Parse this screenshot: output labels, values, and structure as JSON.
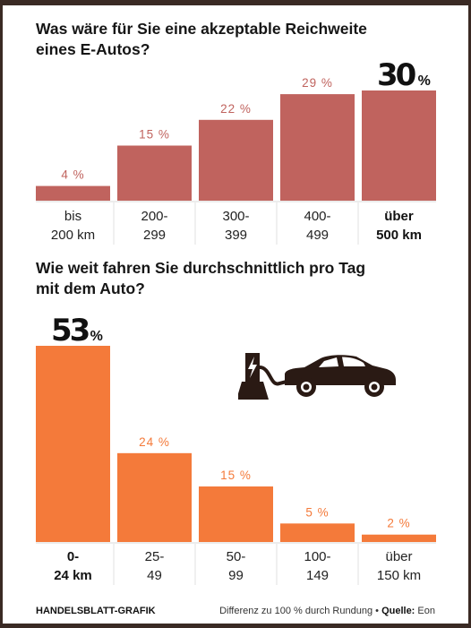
{
  "chart1": {
    "title_line1": "Was wäre für Sie eine akzeptable Reichweite",
    "title_line2": "eines E-Autos?"
  },
  "chart2": {
    "title_line1": "Wie weit fahren Sie durchschnittlich pro Tag",
    "title_line2": "mit dem Auto?"
  },
  "chart_data": [
    {
      "type": "bar",
      "title": "Was wäre für Sie eine akzeptable Reichweite eines E-Autos?",
      "categories": [
        [
          "bis",
          "200 km"
        ],
        [
          "200-",
          "299"
        ],
        [
          "300-",
          "399"
        ],
        [
          "400-",
          "499"
        ],
        [
          "über",
          "500 km"
        ]
      ],
      "values": [
        4,
        15,
        22,
        29,
        30
      ],
      "value_labels": [
        "4 %",
        "15 %",
        "22 %",
        "29 %",
        "30"
      ],
      "highlight_index": 4,
      "unit": "%",
      "ylim": [
        0,
        30
      ],
      "color": "#c0635e",
      "label_color": "#c0635e"
    },
    {
      "type": "bar",
      "title": "Wie weit fahren Sie durchschnittlich pro Tag mit dem Auto?",
      "categories": [
        [
          "0-",
          "24 km"
        ],
        [
          "25-",
          "49"
        ],
        [
          "50-",
          "99"
        ],
        [
          "100-",
          "149"
        ],
        [
          "über",
          "150 km"
        ]
      ],
      "values": [
        53,
        24,
        15,
        5,
        2
      ],
      "value_labels": [
        "53",
        "24 %",
        "15 %",
        "5 %",
        "2 %"
      ],
      "highlight_index": 0,
      "unit": "%",
      "ylim": [
        0,
        53
      ],
      "color": "#f47a3a",
      "label_color": "#f47a3a"
    }
  ],
  "icon": "car-charging-icon",
  "footer": {
    "credit": "HANDELSBLATT-GRAFIK",
    "note": "Differenz zu 100 % durch Rundung",
    "bullet": "•",
    "source_label": "Quelle:",
    "source": "Eon"
  }
}
